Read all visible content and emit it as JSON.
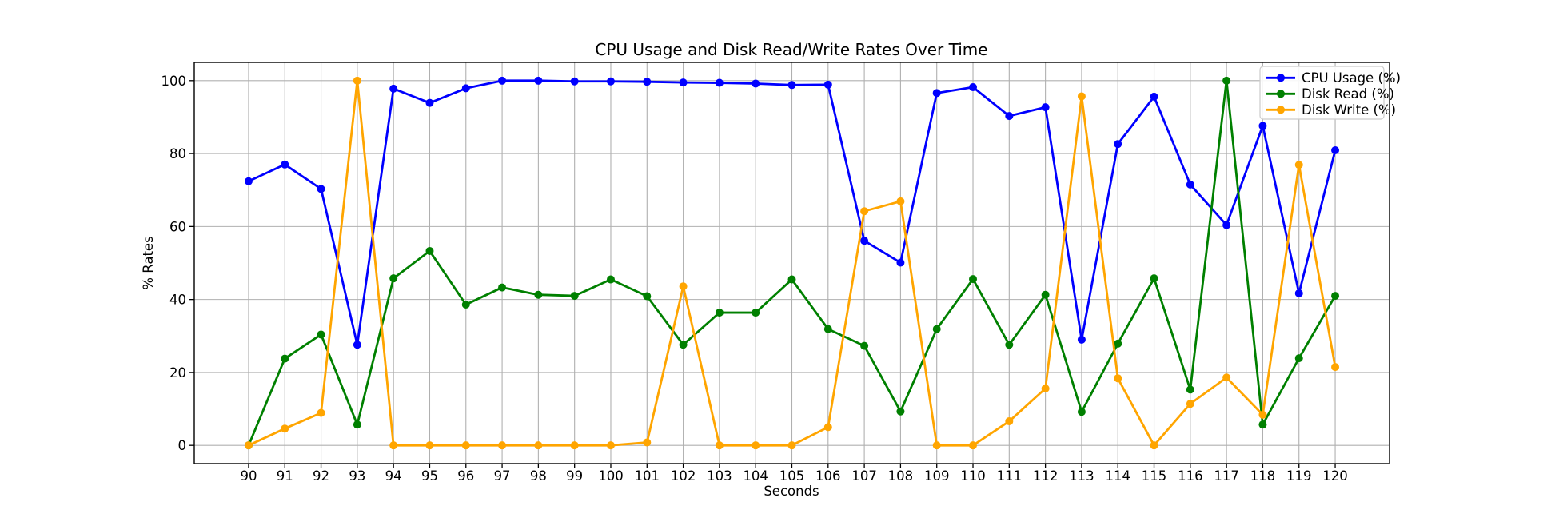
{
  "figure": {
    "title": "CPU Usage and Disk Read/Write Rates Over Time",
    "xlabel": "Seconds",
    "ylabel": "% Rates"
  },
  "chart_data": {
    "type": "line",
    "title": "CPU Usage and Disk Read/Write Rates Over Time",
    "xlabel": "Seconds",
    "ylabel": "% Rates",
    "x": [
      90,
      91,
      92,
      93,
      94,
      95,
      96,
      97,
      98,
      99,
      100,
      101,
      102,
      103,
      104,
      105,
      106,
      107,
      108,
      109,
      110,
      111,
      112,
      113,
      114,
      115,
      116,
      117,
      118,
      119,
      120
    ],
    "series": [
      {
        "name": "CPU Usage (%)",
        "color": "#0000ff",
        "values": [
          72.4,
          77.0,
          70.3,
          27.6,
          97.8,
          93.9,
          97.9,
          100.0,
          100.0,
          99.8,
          99.8,
          99.7,
          99.5,
          99.4,
          99.2,
          98.8,
          98.9,
          56.1,
          50.1,
          96.6,
          98.2,
          90.3,
          92.7,
          29.0,
          82.6,
          95.6,
          71.5,
          60.4,
          87.6,
          41.7,
          80.9
        ]
      },
      {
        "name": "Disk Read (%)",
        "color": "#008000",
        "values": [
          0.0,
          23.8,
          30.4,
          5.7,
          45.8,
          53.3,
          38.6,
          43.3,
          41.3,
          41.0,
          45.5,
          40.9,
          27.6,
          36.4,
          36.4,
          45.5,
          31.9,
          27.3,
          9.3,
          31.9,
          45.6,
          27.6,
          41.3,
          9.2,
          27.9,
          45.8,
          15.3,
          100.0,
          5.7,
          23.9,
          41.0
        ]
      },
      {
        "name": "Disk Write (%)",
        "color": "#ffa500",
        "values": [
          0.0,
          4.6,
          8.9,
          100.0,
          0.0,
          0.0,
          0.0,
          0.0,
          0.0,
          0.0,
          0.0,
          0.8,
          43.6,
          0.0,
          0.0,
          0.0,
          5.0,
          64.2,
          66.9,
          0.0,
          0.0,
          6.6,
          15.6,
          95.7,
          18.4,
          0.0,
          11.4,
          18.6,
          8.4,
          76.9,
          21.5
        ]
      }
    ],
    "xticks": [
      90,
      91,
      92,
      93,
      94,
      95,
      96,
      97,
      98,
      99,
      100,
      101,
      102,
      103,
      104,
      105,
      106,
      107,
      108,
      109,
      110,
      111,
      112,
      113,
      114,
      115,
      116,
      117,
      118,
      119,
      120
    ],
    "yticks": [
      0,
      20,
      40,
      60,
      80,
      100
    ],
    "xlim": [
      88.5,
      121.5
    ],
    "ylim": [
      -5,
      105
    ],
    "grid": true,
    "grid_color": "#b0b0b0",
    "spine_color": "#000000",
    "legend_position": "upper right",
    "legend_border_color": "#cccccc",
    "marker": "circle"
  }
}
